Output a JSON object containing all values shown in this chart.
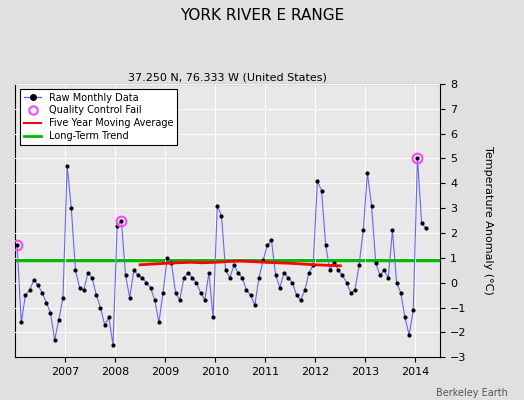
{
  "title": "YORK RIVER E RANGE",
  "subtitle": "37.250 N, 76.333 W (United States)",
  "ylabel": "Temperature Anomaly (°C)",
  "footer": "Berkeley Earth",
  "ylim": [
    -3,
    8
  ],
  "yticks": [
    -3,
    -2,
    -1,
    0,
    1,
    2,
    3,
    4,
    5,
    6,
    7,
    8
  ],
  "xlim_start": 2006.0,
  "xlim_end": 2014.5,
  "long_term_trend_value": 0.92,
  "bg_color": "#e0e0e0",
  "plot_bg_color": "#e8e8e8",
  "raw_data": [
    [
      2006.042,
      1.5
    ],
    [
      2006.125,
      -1.6
    ],
    [
      2006.208,
      -0.5
    ],
    [
      2006.292,
      -0.3
    ],
    [
      2006.375,
      0.1
    ],
    [
      2006.458,
      -0.1
    ],
    [
      2006.542,
      -0.4
    ],
    [
      2006.625,
      -0.8
    ],
    [
      2006.708,
      -1.2
    ],
    [
      2006.792,
      -2.3
    ],
    [
      2006.875,
      -1.5
    ],
    [
      2006.958,
      -0.6
    ],
    [
      2007.042,
      4.7
    ],
    [
      2007.125,
      3.0
    ],
    [
      2007.208,
      0.5
    ],
    [
      2007.292,
      -0.2
    ],
    [
      2007.375,
      -0.3
    ],
    [
      2007.458,
      0.4
    ],
    [
      2007.542,
      0.2
    ],
    [
      2007.625,
      -0.5
    ],
    [
      2007.708,
      -1.0
    ],
    [
      2007.792,
      -1.7
    ],
    [
      2007.875,
      -1.4
    ],
    [
      2007.958,
      -2.5
    ],
    [
      2008.042,
      2.3
    ],
    [
      2008.125,
      2.5
    ],
    [
      2008.208,
      0.3
    ],
    [
      2008.292,
      -0.6
    ],
    [
      2008.375,
      0.5
    ],
    [
      2008.458,
      0.3
    ],
    [
      2008.542,
      0.2
    ],
    [
      2008.625,
      0.0
    ],
    [
      2008.708,
      -0.2
    ],
    [
      2008.792,
      -0.7
    ],
    [
      2008.875,
      -1.6
    ],
    [
      2008.958,
      -0.4
    ],
    [
      2009.042,
      1.0
    ],
    [
      2009.125,
      0.8
    ],
    [
      2009.208,
      -0.4
    ],
    [
      2009.292,
      -0.7
    ],
    [
      2009.375,
      0.2
    ],
    [
      2009.458,
      0.4
    ],
    [
      2009.542,
      0.2
    ],
    [
      2009.625,
      0.0
    ],
    [
      2009.708,
      -0.4
    ],
    [
      2009.792,
      -0.7
    ],
    [
      2009.875,
      0.4
    ],
    [
      2009.958,
      -1.4
    ],
    [
      2010.042,
      3.1
    ],
    [
      2010.125,
      2.7
    ],
    [
      2010.208,
      0.5
    ],
    [
      2010.292,
      0.2
    ],
    [
      2010.375,
      0.7
    ],
    [
      2010.458,
      0.4
    ],
    [
      2010.542,
      0.2
    ],
    [
      2010.625,
      -0.3
    ],
    [
      2010.708,
      -0.5
    ],
    [
      2010.792,
      -0.9
    ],
    [
      2010.875,
      0.2
    ],
    [
      2010.958,
      0.9
    ],
    [
      2011.042,
      1.5
    ],
    [
      2011.125,
      1.7
    ],
    [
      2011.208,
      0.3
    ],
    [
      2011.292,
      -0.2
    ],
    [
      2011.375,
      0.4
    ],
    [
      2011.458,
      0.2
    ],
    [
      2011.542,
      0.0
    ],
    [
      2011.625,
      -0.5
    ],
    [
      2011.708,
      -0.7
    ],
    [
      2011.792,
      -0.3
    ],
    [
      2011.875,
      0.4
    ],
    [
      2011.958,
      0.7
    ],
    [
      2012.042,
      4.1
    ],
    [
      2012.125,
      3.7
    ],
    [
      2012.208,
      1.5
    ],
    [
      2012.292,
      0.5
    ],
    [
      2012.375,
      0.8
    ],
    [
      2012.458,
      0.5
    ],
    [
      2012.542,
      0.3
    ],
    [
      2012.625,
      0.0
    ],
    [
      2012.708,
      -0.4
    ],
    [
      2012.792,
      -0.3
    ],
    [
      2012.875,
      0.7
    ],
    [
      2012.958,
      2.1
    ],
    [
      2013.042,
      4.4
    ],
    [
      2013.125,
      3.1
    ],
    [
      2013.208,
      0.8
    ],
    [
      2013.292,
      0.3
    ],
    [
      2013.375,
      0.5
    ],
    [
      2013.458,
      0.2
    ],
    [
      2013.542,
      2.1
    ],
    [
      2013.625,
      0.0
    ],
    [
      2013.708,
      -0.4
    ],
    [
      2013.792,
      -1.4
    ],
    [
      2013.875,
      -2.1
    ],
    [
      2013.958,
      -1.1
    ],
    [
      2014.042,
      5.0
    ],
    [
      2014.125,
      2.4
    ],
    [
      2014.208,
      2.2
    ]
  ],
  "qc_fail_points": [
    [
      2006.042,
      1.5
    ],
    [
      2008.125,
      2.5
    ],
    [
      2014.042,
      5.0
    ]
  ],
  "moving_avg": [
    [
      2008.5,
      0.72
    ],
    [
      2008.75,
      0.75
    ],
    [
      2009.0,
      0.78
    ],
    [
      2009.25,
      0.8
    ],
    [
      2009.5,
      0.82
    ],
    [
      2009.75,
      0.8
    ],
    [
      2010.0,
      0.82
    ],
    [
      2010.25,
      0.85
    ],
    [
      2010.5,
      0.87
    ],
    [
      2010.75,
      0.85
    ],
    [
      2011.0,
      0.82
    ],
    [
      2011.25,
      0.8
    ],
    [
      2011.5,
      0.78
    ],
    [
      2011.75,
      0.75
    ],
    [
      2012.0,
      0.72
    ],
    [
      2012.25,
      0.7
    ],
    [
      2012.5,
      0.68
    ]
  ],
  "line_color": "#6666ff",
  "marker_color": "#000000",
  "qc_color": "#ff44ff",
  "moving_avg_color": "#ff0000",
  "trend_color": "#00bb00"
}
